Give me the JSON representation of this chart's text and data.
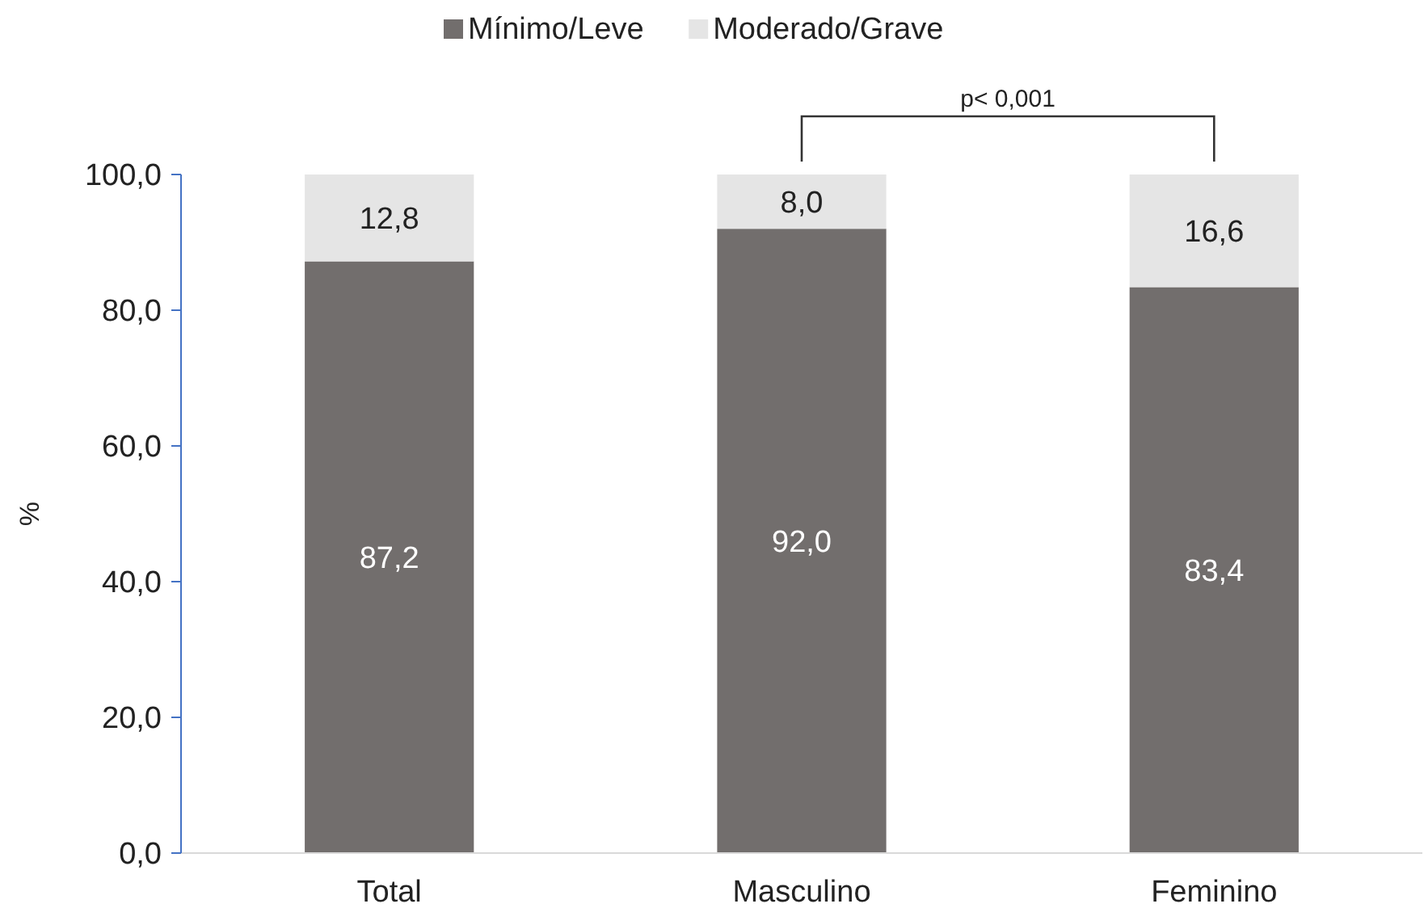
{
  "chart_data": {
    "type": "bar",
    "stacked": true,
    "ylabel": "%",
    "categories": [
      "Total",
      "Masculino",
      "Feminino"
    ],
    "series": [
      {
        "name": "Mínimo/Leve",
        "color": "#726e6d",
        "values": [
          87.2,
          92.0,
          83.4
        ],
        "value_labels": [
          "87,2",
          "92,0",
          "83,4"
        ]
      },
      {
        "name": "Moderado/Grave",
        "color": "#e5e5e5",
        "values": [
          12.8,
          8.0,
          16.6
        ],
        "value_labels": [
          "12,8",
          "8,0",
          "16,6"
        ]
      }
    ],
    "ylim": [
      0,
      100
    ],
    "yticks": [
      {
        "value": 0,
        "label": "0,0"
      },
      {
        "value": 20,
        "label": "20,0"
      },
      {
        "value": 40,
        "label": "40,0"
      },
      {
        "value": 60,
        "label": "60,0"
      },
      {
        "value": 80,
        "label": "80,0"
      },
      {
        "value": 100,
        "label": "100,0"
      }
    ],
    "legend": "top",
    "grid": false,
    "annotations": [
      "p< 0,001"
    ]
  }
}
